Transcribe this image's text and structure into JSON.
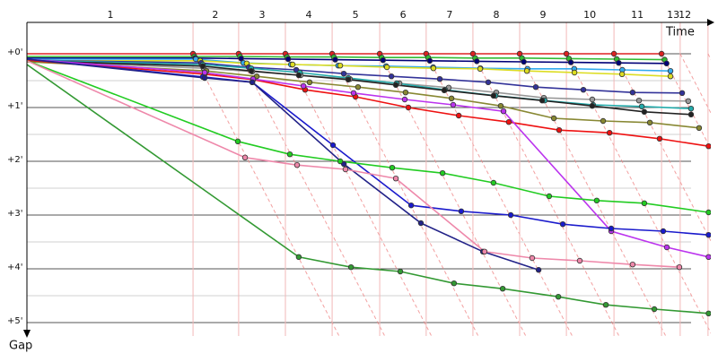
{
  "chart_data": {
    "type": "line",
    "x_label": "Time",
    "y_label": "Gap",
    "xlim": [
      0,
      24.5
    ],
    "ylim": [
      -0.6,
      5.25
    ],
    "xticks": [
      {
        "value": 3.0,
        "label": "1"
      },
      {
        "value": 6.77,
        "label": "2"
      },
      {
        "value": 8.45,
        "label": "3"
      },
      {
        "value": 10.13,
        "label": "4"
      },
      {
        "value": 11.81,
        "label": "5"
      },
      {
        "value": 13.52,
        "label": "6"
      },
      {
        "value": 15.19,
        "label": "7"
      },
      {
        "value": 16.87,
        "label": "8"
      },
      {
        "value": 18.55,
        "label": "9"
      },
      {
        "value": 20.23,
        "label": "10"
      },
      {
        "value": 21.94,
        "label": "11"
      },
      {
        "value": 23.23,
        "label": "13"
      },
      {
        "value": 23.65,
        "label": "12"
      }
    ],
    "yticks": [
      {
        "value": 0,
        "label": "+0'"
      },
      {
        "value": 1,
        "label": "+1'"
      },
      {
        "value": 2,
        "label": "+2'"
      },
      {
        "value": 3,
        "label": "+3'"
      },
      {
        "value": 4,
        "label": "+4'"
      },
      {
        "value": 5,
        "label": "+5'"
      }
    ],
    "minor_yticks": [
      0.5,
      1.5,
      2.5,
      3.5,
      4.5
    ],
    "lap_ends": [
      5.97,
      7.61,
      9.29,
      10.97,
      12.68,
      14.35,
      16.03,
      17.71,
      19.39,
      21.1,
      22.81,
      23.48,
      24.48
    ],
    "grid": true,
    "series": [
      {
        "color": "#dd2222",
        "x": [
          0,
          5.97,
          7.61,
          9.29,
          10.97,
          12.68,
          14.35,
          16.03,
          17.71,
          19.39,
          21.1,
          22.81
        ],
        "values": [
          0,
          0,
          0,
          0,
          0,
          0,
          0,
          0,
          0,
          0,
          0,
          0
        ]
      },
      {
        "color": "#33bb33",
        "x": [
          0,
          6.02,
          7.66,
          9.35,
          11.03,
          12.75,
          14.42,
          16.11,
          17.79,
          19.48,
          21.2,
          22.92
        ],
        "values": [
          0.05,
          0.05,
          0.05,
          0.06,
          0.06,
          0.07,
          0.07,
          0.08,
          0.08,
          0.09,
          0.1,
          0.11
        ]
      },
      {
        "color": "#000077",
        "x": [
          0,
          6.05,
          7.7,
          9.39,
          11.08,
          12.8,
          14.48,
          16.17,
          17.86,
          19.55,
          21.27,
          22.99
        ],
        "values": [
          0.08,
          0.08,
          0.09,
          0.1,
          0.11,
          0.12,
          0.13,
          0.14,
          0.15,
          0.16,
          0.17,
          0.18
        ]
      },
      {
        "color": "#33aaee",
        "x": [
          0,
          6.07,
          7.78,
          9.49,
          11.19,
          12.91,
          14.6,
          16.3,
          17.99,
          19.67,
          21.4,
          23.13
        ],
        "values": [
          0.1,
          0.1,
          0.17,
          0.2,
          0.22,
          0.23,
          0.25,
          0.27,
          0.28,
          0.28,
          0.3,
          0.32
        ]
      },
      {
        "color": "#dddd22",
        "x": [
          0,
          6.23,
          7.9,
          9.55,
          11.26,
          12.94,
          14.61,
          16.29,
          17.97,
          19.68,
          21.39,
          23.13
        ],
        "values": [
          0.13,
          0.13,
          0.18,
          0.2,
          0.22,
          0.25,
          0.27,
          0.28,
          0.32,
          0.35,
          0.38,
          0.42
        ]
      },
      {
        "color": "#333399",
        "x": [
          0,
          6.26,
          7.97,
          9.68,
          11.39,
          13.1,
          14.84,
          16.58,
          18.29,
          20.0,
          21.77,
          23.55
        ],
        "values": [
          0.12,
          0.17,
          0.25,
          0.3,
          0.37,
          0.42,
          0.47,
          0.53,
          0.62,
          0.67,
          0.72,
          0.73
        ]
      },
      {
        "color": "#999999",
        "x": [
          0,
          6.35,
          8.1,
          9.84,
          11.61,
          13.39,
          15.16,
          16.87,
          18.58,
          20.32,
          22.0,
          23.77
        ],
        "values": [
          0.13,
          0.27,
          0.33,
          0.4,
          0.47,
          0.55,
          0.63,
          0.72,
          0.82,
          0.85,
          0.87,
          0.88
        ]
      },
      {
        "color": "#22aaaa",
        "x": [
          0,
          6.32,
          8.06,
          9.81,
          11.55,
          13.29,
          15.03,
          16.84,
          18.61,
          20.35,
          22.1,
          23.87
        ],
        "values": [
          0.12,
          0.2,
          0.27,
          0.35,
          0.45,
          0.55,
          0.67,
          0.78,
          0.87,
          0.95,
          0.98,
          1.02
        ]
      },
      {
        "color": "#222222",
        "x": [
          0,
          6.32,
          8.06,
          9.77,
          11.55,
          13.26,
          15.0,
          16.77,
          18.52,
          20.32,
          22.19,
          23.87
        ],
        "values": [
          0.13,
          0.23,
          0.32,
          0.4,
          0.48,
          0.58,
          0.68,
          0.78,
          0.87,
          0.97,
          1.08,
          1.13
        ]
      },
      {
        "color": "#888833",
        "x": [
          0,
          6.45,
          8.26,
          10.16,
          11.9,
          13.61,
          15.26,
          17.03,
          18.94,
          20.71,
          22.39,
          24.16
        ],
        "values": [
          0.15,
          0.32,
          0.42,
          0.53,
          0.62,
          0.72,
          0.83,
          0.97,
          1.2,
          1.25,
          1.28,
          1.38
        ]
      },
      {
        "color": "#ee1111",
        "x": [
          0,
          6.39,
          8.13,
          10.0,
          11.81,
          13.71,
          15.52,
          17.32,
          19.13,
          20.94,
          22.74,
          24.5
        ],
        "values": [
          0.12,
          0.38,
          0.48,
          0.67,
          0.8,
          1.0,
          1.15,
          1.27,
          1.42,
          1.47,
          1.58,
          1.72
        ]
      },
      {
        "color": "#bb33ee",
        "x": [
          0,
          6.39,
          8.13,
          9.94,
          11.74,
          13.58,
          15.32,
          17.13,
          21.0,
          23.0,
          24.5
        ],
        "values": [
          0.1,
          0.35,
          0.47,
          0.6,
          0.73,
          0.85,
          0.95,
          1.07,
          3.3,
          3.6,
          3.78
        ]
      },
      {
        "color": "#1a1acc",
        "x": [
          0,
          6.32,
          8.1,
          11.0,
          13.81,
          15.61,
          17.39,
          19.26,
          21.0,
          22.87,
          24.5
        ],
        "values": [
          0.1,
          0.43,
          0.53,
          1.7,
          2.82,
          2.93,
          3.0,
          3.17,
          3.25,
          3.3,
          3.37
        ]
      },
      {
        "color": "#222288",
        "x": [
          0,
          6.39,
          8.1,
          11.39,
          14.16,
          16.39,
          18.39
        ],
        "values": [
          0.1,
          0.45,
          0.53,
          2.05,
          3.15,
          3.68,
          4.02
        ]
      },
      {
        "color": "#22cc22",
        "x": [
          0,
          7.58,
          9.45,
          11.26,
          13.13,
          14.94,
          16.77,
          18.77,
          20.48,
          22.19,
          24.5
        ],
        "values": [
          0.13,
          1.63,
          1.87,
          2.0,
          2.12,
          2.22,
          2.4,
          2.65,
          2.73,
          2.78,
          2.95
        ]
      },
      {
        "color": "#ee88aa",
        "x": [
          0,
          7.84,
          9.71,
          11.45,
          13.26,
          16.45,
          18.16,
          19.87,
          21.77,
          23.45
        ],
        "values": [
          0.13,
          1.93,
          2.07,
          2.15,
          2.32,
          3.68,
          3.8,
          3.85,
          3.92,
          3.97
        ]
      },
      {
        "color": "#339933",
        "x": [
          0,
          9.77,
          11.65,
          13.42,
          15.35,
          17.1,
          19.1,
          20.81,
          22.55,
          24.5
        ],
        "values": [
          0.2,
          3.78,
          3.97,
          4.05,
          4.27,
          4.37,
          4.52,
          4.67,
          4.75,
          4.83
        ]
      }
    ]
  }
}
